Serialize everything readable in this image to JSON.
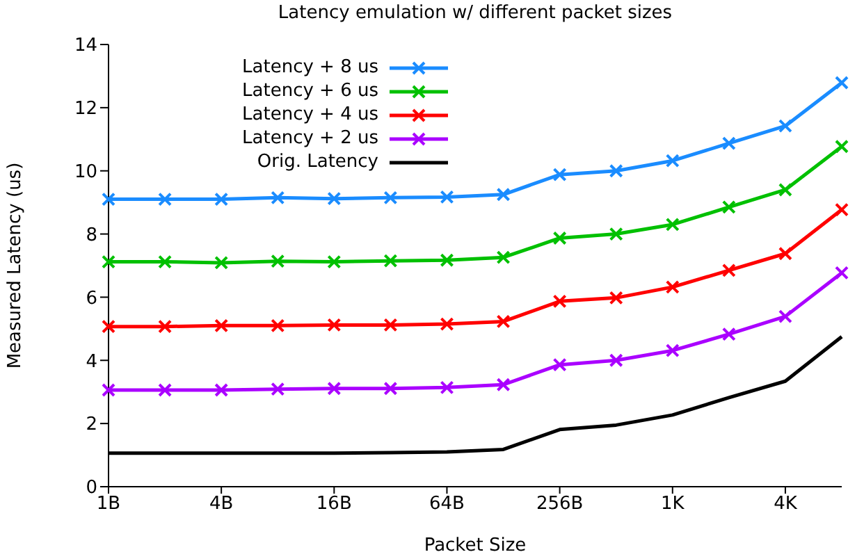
{
  "chart_data": {
    "type": "line",
    "title": "Latency emulation w/ different packet sizes",
    "xlabel": "Packet Size",
    "ylabel": "Measured Latency (us)",
    "categories": [
      "1B",
      null,
      "4B",
      null,
      "16B",
      null,
      "64B",
      null,
      "256B",
      null,
      "1K",
      null,
      "4K",
      null
    ],
    "ylim": [
      0,
      14
    ],
    "yticks": [
      0,
      2,
      4,
      6,
      8,
      10,
      12,
      14
    ],
    "grid": false,
    "legend": "top left",
    "marker": "cross",
    "line_style": "solid",
    "series": [
      {
        "name": "Latency + 8 us",
        "color": "#1a8cff",
        "values": [
          9.1,
          9.1,
          9.1,
          9.15,
          9.12,
          9.15,
          9.17,
          9.25,
          9.88,
          10.0,
          10.32,
          10.87,
          11.42,
          12.79
        ]
      },
      {
        "name": "Latency + 6 us",
        "color": "#00c000",
        "values": [
          7.12,
          7.12,
          7.09,
          7.14,
          7.12,
          7.15,
          7.17,
          7.26,
          7.87,
          8.0,
          8.3,
          8.85,
          9.4,
          10.77
        ]
      },
      {
        "name": "Latency + 4 us",
        "color": "#ff0000",
        "values": [
          5.07,
          5.07,
          5.1,
          5.1,
          5.12,
          5.12,
          5.15,
          5.23,
          5.87,
          5.98,
          6.32,
          6.85,
          7.38,
          8.77
        ]
      },
      {
        "name": "Latency + 2 us",
        "color": "#aa00ff",
        "values": [
          3.06,
          3.06,
          3.06,
          3.09,
          3.11,
          3.11,
          3.14,
          3.23,
          3.86,
          4.0,
          4.31,
          4.83,
          5.39,
          6.77
        ]
      },
      {
        "name": "Orig. Latency",
        "color": "#000000",
        "marker": "none",
        "values": [
          1.06,
          1.06,
          1.06,
          1.06,
          1.06,
          1.08,
          1.1,
          1.18,
          1.81,
          1.95,
          2.27,
          2.82,
          3.34,
          4.75
        ]
      }
    ]
  }
}
